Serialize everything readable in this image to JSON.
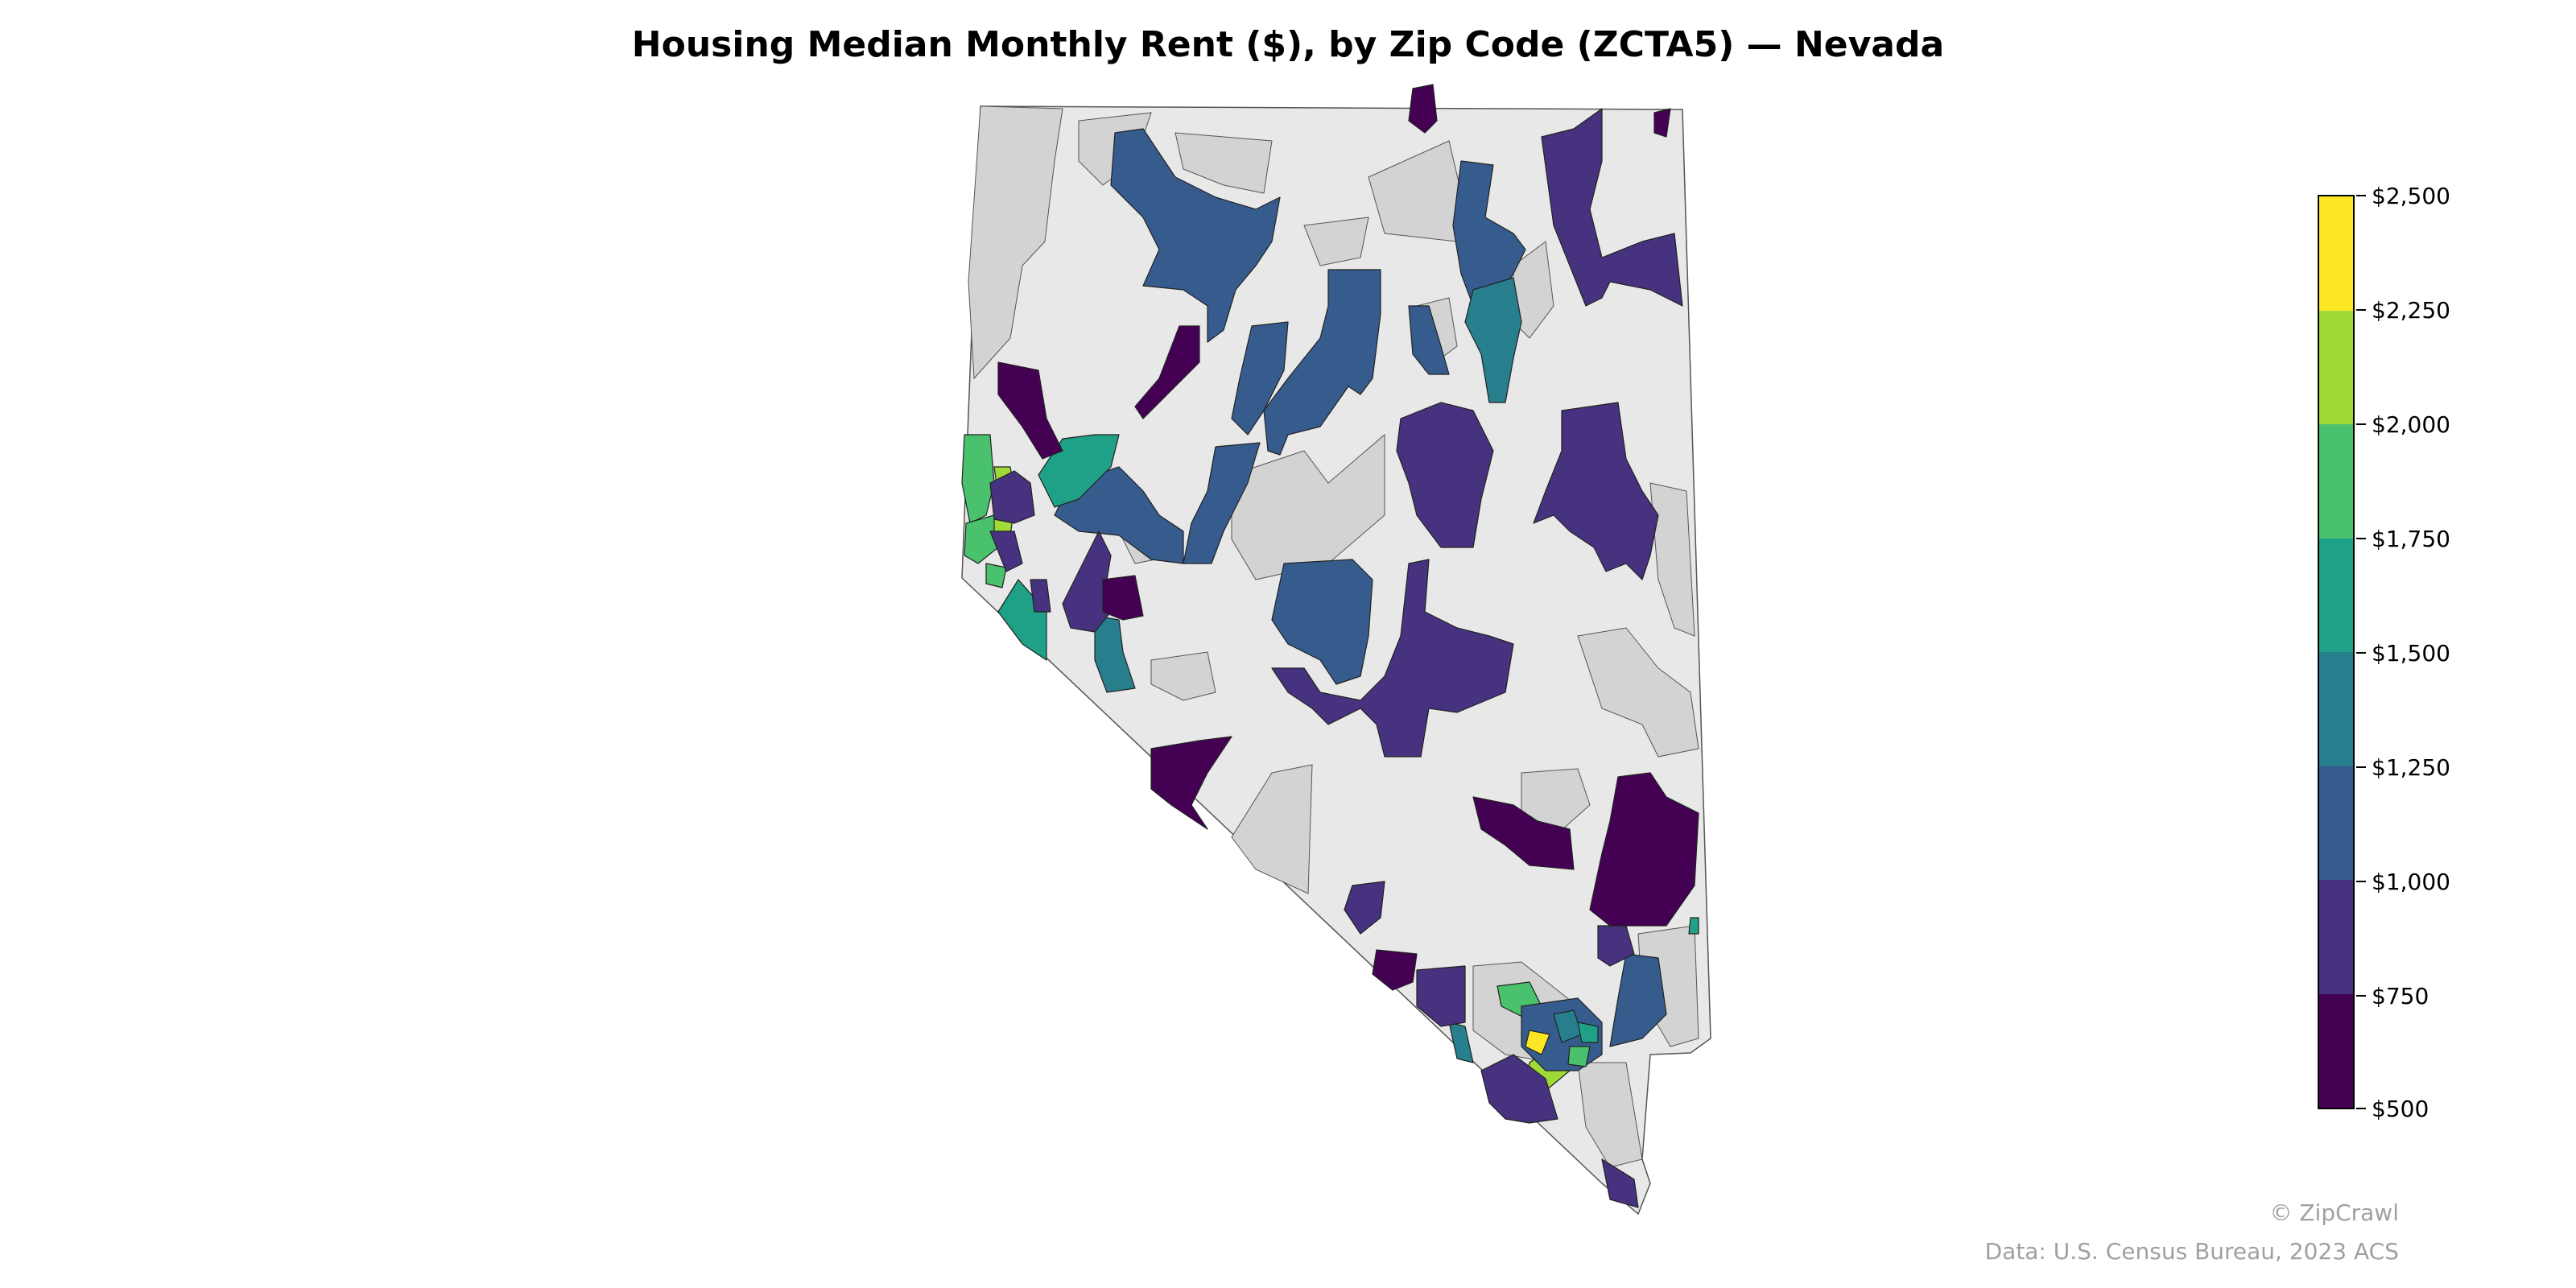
{
  "title": "Housing Median Monthly Rent ($), by Zip Code (ZCTA5) — Nevada",
  "legend": {
    "ticks": [
      "$2,500",
      "$2,250",
      "$2,000",
      "$1,750",
      "$1,500",
      "$1,250",
      "$1,000",
      "$750",
      "$500"
    ],
    "colors_top_to_bottom": [
      "#fde725",
      "#a0da39",
      "#4ac16d",
      "#1fa187",
      "#277f8e",
      "#365c8d",
      "#46327e",
      "#440154"
    ],
    "no_data_color": "#d3d3d3",
    "background_color": "#e8e8e8"
  },
  "credits": {
    "brand": "© ZipCrawl",
    "source": "Data: U.S. Census Bureau, 2023 ACS"
  }
}
